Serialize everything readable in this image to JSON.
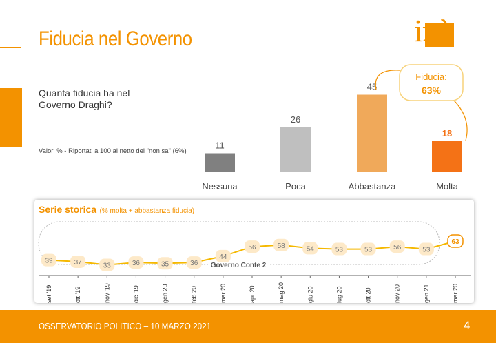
{
  "page": {
    "title": "Fiducia nel Governo",
    "logo": "ixè",
    "question": "Quanta fiducia ha nel Governo Draghi?",
    "note": "Valori % - Riportati a 100 al netto dei \"non sa\" (6%)",
    "series_title": "Serie storica",
    "series_subtitle": "(% molta + abbastanza fiducia)",
    "period_label": "Governo Conte 2",
    "footer": "OSSERVATORIO POLITICO – 10 MARZO 2021",
    "page_number": "4"
  },
  "colors": {
    "accent": "#f39200",
    "nessuna": "#808080",
    "poca": "#bfbfbf",
    "abbastanza": "#f0a95a",
    "molta": "#f47216"
  },
  "chart_data": [
    {
      "type": "bar",
      "title": "Quanta fiducia ha nel Governo Draghi?",
      "categories": [
        "Nessuna",
        "Poca",
        "Abbastanza",
        "Molta"
      ],
      "values": [
        11,
        26,
        45,
        18
      ],
      "ylim": [
        0,
        50
      ],
      "callout": {
        "label": "Fiducia:",
        "value": "63%"
      }
    },
    {
      "type": "line",
      "title": "Serie storica (% molta + abbastanza fiducia)",
      "categories": [
        "set '19",
        "ott '19",
        "nov '19",
        "dic '19",
        "gen 20",
        "feb 20",
        "mar 20",
        "apr 20",
        "mag 20",
        "giu 20",
        "lug 20",
        "ott 20",
        "nov 20",
        "gen 21",
        "mar 20"
      ],
      "values": [
        39,
        37,
        33,
        36,
        35,
        36,
        44,
        56,
        58,
        54,
        53,
        53,
        56,
        53,
        63
      ],
      "ylim": [
        30,
        65
      ]
    }
  ]
}
